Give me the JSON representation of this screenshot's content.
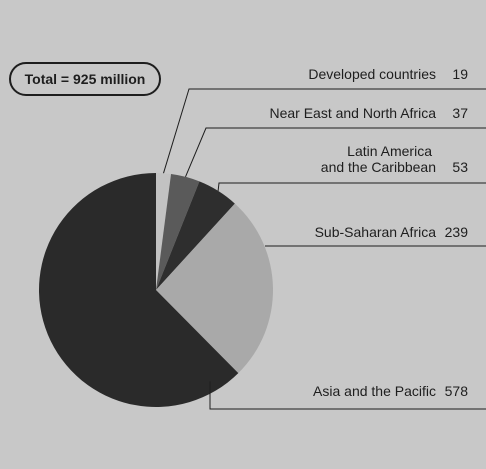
{
  "chart_data": {
    "type": "pie",
    "unit": "million",
    "total_label": "Total = 925 million",
    "slices": [
      {
        "name": "Developed countries",
        "name_lines": [
          "Developed countries"
        ],
        "value": 19,
        "color": "#c2c2c2"
      },
      {
        "name": "Near East and North Africa",
        "name_lines": [
          "Near East and North Africa"
        ],
        "value": 37,
        "color": "#5a5a5a"
      },
      {
        "name": "Latin America and the Caribbean",
        "name_lines": [
          "Latin America",
          "and the Caribbean"
        ],
        "value": 53,
        "color": "#2e2e2e"
      },
      {
        "name": "Sub-Saharan Africa",
        "name_lines": [
          "Sub-Saharan Africa"
        ],
        "value": 239,
        "color": "#a9a9a9"
      },
      {
        "name": "Asia and the Pacific",
        "name_lines": [
          "Asia and the Pacific"
        ],
        "value": 578,
        "color": "#2a2a2a"
      }
    ],
    "background": "#c8c8c8",
    "text_color": "#1e1e1e"
  }
}
